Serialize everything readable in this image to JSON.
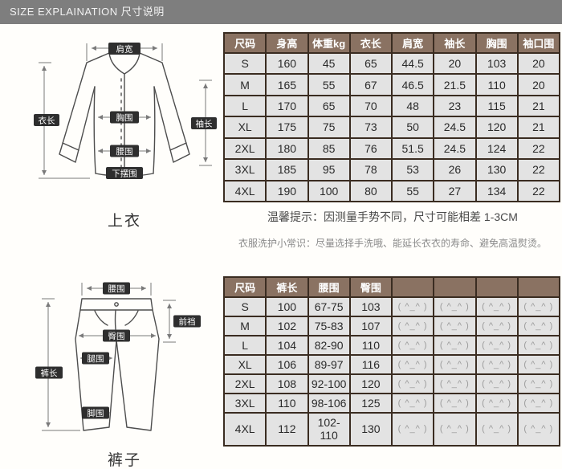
{
  "header": {
    "title": "SIZE EXPLAINATION  尺寸说明"
  },
  "palette": {
    "topbar_bg": "#7e7e7e",
    "table_header_bg": "#8a7262",
    "table_border": "#3a2c21",
    "row_bg": "#e3e3e3",
    "emoticon_color": "#9b9b9b"
  },
  "top_table": {
    "headers": [
      "尺码",
      "身高",
      "体重kg",
      "衣长",
      "肩宽",
      "袖长",
      "胸围",
      "袖口围"
    ],
    "rows": [
      [
        "S",
        "160",
        "45",
        "65",
        "44.5",
        "20",
        "103",
        "20"
      ],
      [
        "M",
        "165",
        "55",
        "67",
        "46.5",
        "21.5",
        "110",
        "20"
      ],
      [
        "L",
        "170",
        "65",
        "70",
        "48",
        "23",
        "115",
        "21"
      ],
      [
        "XL",
        "175",
        "75",
        "73",
        "50",
        "24.5",
        "120",
        "21"
      ],
      [
        "2XL",
        "180",
        "85",
        "76",
        "51.5",
        "24.5",
        "124",
        "22"
      ],
      [
        "3XL",
        "185",
        "95",
        "78",
        "53",
        "26",
        "130",
        "22"
      ],
      [
        "4XL",
        "190",
        "100",
        "80",
        "55",
        "27",
        "134",
        "22"
      ]
    ]
  },
  "bottom_table": {
    "headers": [
      "尺码",
      "裤长",
      "腰围",
      "臀围",
      "",
      "",
      "",
      ""
    ],
    "rows": [
      [
        "S",
        "100",
        "67-75",
        "103",
        "( ^_^ )",
        "( ^_^ )",
        "( ^_^ )",
        "( ^_^ )"
      ],
      [
        "M",
        "102",
        "75-83",
        "107",
        "( ^_^ )",
        "( ^_^ )",
        "( ^_^ )",
        "( ^_^ )"
      ],
      [
        "L",
        "104",
        "82-90",
        "110",
        "( ^_^ )",
        "( ^_^ )",
        "( ^_^ )",
        "( ^_^ )"
      ],
      [
        "XL",
        "106",
        "89-97",
        "116",
        "( ^_^ )",
        "( ^_^ )",
        "( ^_^ )",
        "( ^_^ )"
      ],
      [
        "2XL",
        "108",
        "92-100",
        "120",
        "( ^_^ )",
        "( ^_^ )",
        "( ^_^ )",
        "( ^_^ )"
      ],
      [
        "3XL",
        "110",
        "98-106",
        "125",
        "( ^_^ )",
        "( ^_^ )",
        "( ^_^ )",
        "( ^_^ )"
      ],
      [
        "4XL",
        "112",
        "102-110",
        "130",
        "( ^_^ )",
        "( ^_^ )",
        "( ^_^ )",
        "( ^_^ )"
      ]
    ]
  },
  "tips": {
    "line1": "温馨提示：因测量手势不同，尺寸可能相差 1-3CM",
    "line2": "衣服洗护小常识：尽量选择手洗哦、能延长衣衣的寿命、避免高温熨烫。"
  },
  "shirt_diagram": {
    "caption": "上衣",
    "labels": {
      "shoulder": "肩宽",
      "length": "衣长",
      "chest": "胸围",
      "sleeve": "袖长",
      "waist": "腰围",
      "hem": "下摆围"
    }
  },
  "pants_diagram": {
    "caption": "裤子",
    "labels": {
      "waist": "腰围",
      "front_rise": "前裆",
      "hip": "臀围",
      "thigh": "腿围",
      "length": "裤长",
      "ankle": "脚围"
    }
  }
}
